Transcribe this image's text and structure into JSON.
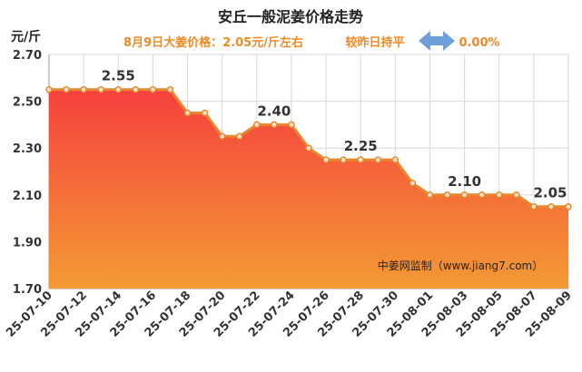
{
  "chart_data": {
    "type": "area",
    "title": "安丘一般泥姜价格走势",
    "ylabel": "元/斤",
    "xlabel": "",
    "ylim": [
      1.7,
      2.7
    ],
    "yticks": [
      "1.70",
      "1.90",
      "2.10",
      "2.30",
      "2.50",
      "2.70"
    ],
    "xtick_labels": [
      "25-07-10",
      "25-07-12",
      "25-07-14",
      "25-07-16",
      "25-07-18",
      "25-07-20",
      "25-07-22",
      "25-07-24",
      "25-07-26",
      "25-07-28",
      "25-07-30",
      "25-08-01",
      "25-08-03",
      "25-08-05",
      "25-08-07",
      "25-08-09"
    ],
    "x": [
      "25-07-10",
      "25-07-11",
      "25-07-12",
      "25-07-13",
      "25-07-14",
      "25-07-15",
      "25-07-16",
      "25-07-17",
      "25-07-18",
      "25-07-19",
      "25-07-20",
      "25-07-21",
      "25-07-22",
      "25-07-23",
      "25-07-24",
      "25-07-25",
      "25-07-26",
      "25-07-27",
      "25-07-28",
      "25-07-29",
      "25-07-30",
      "25-07-31",
      "25-08-01",
      "25-08-02",
      "25-08-03",
      "25-08-04",
      "25-08-05",
      "25-08-06",
      "25-08-07",
      "25-08-08",
      "25-08-09"
    ],
    "values": [
      2.55,
      2.55,
      2.55,
      2.55,
      2.55,
      2.55,
      2.55,
      2.55,
      2.45,
      2.45,
      2.35,
      2.35,
      2.4,
      2.4,
      2.4,
      2.3,
      2.25,
      2.25,
      2.25,
      2.25,
      2.25,
      2.15,
      2.1,
      2.1,
      2.1,
      2.1,
      2.1,
      2.1,
      2.05,
      2.05,
      2.05
    ],
    "annotations": [
      {
        "index": 4,
        "text": "2.55"
      },
      {
        "index": 13,
        "text": "2.40"
      },
      {
        "index": 18,
        "text": "2.25"
      },
      {
        "index": 24,
        "text": "2.10"
      },
      {
        "index": 29,
        "text": "2.05"
      }
    ],
    "subtitle": {
      "price_text": "8月9日大姜价格：2.05元/斤左右",
      "compare_text": "较昨日持平",
      "change_text": "0.00%"
    },
    "watermark": "中姜网监制（www.jiang7.com）",
    "colors": {
      "title": "#222222",
      "subtitle": "#f08a24",
      "line": "#e8872e",
      "marker_fill": "#fbe7cf",
      "area_top": "#f5403e",
      "area_bottom": "#f39a34",
      "arrow": "#6f9fd8",
      "grid": "#d8d8d8",
      "axis_text": "#333333"
    },
    "grid": true
  }
}
